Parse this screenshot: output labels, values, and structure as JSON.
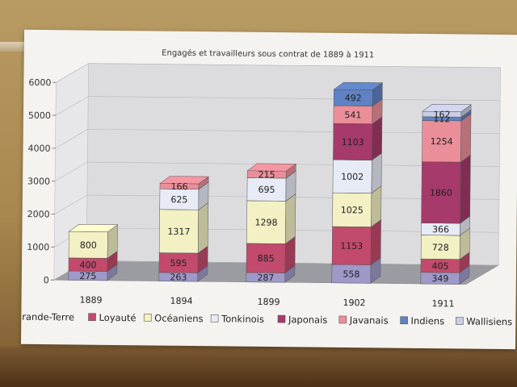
{
  "chart_data": {
    "type": "bar",
    "stacked": true,
    "three_d": true,
    "title": "Engagés et travailleurs sous contrat de 1889 à 1911",
    "xlabel": "",
    "ylabel": "",
    "ylim": [
      0,
      6000
    ],
    "yticks": [
      "0",
      "1000",
      "2000",
      "3000",
      "4000",
      "5000",
      "6000"
    ],
    "grid": true,
    "legend_position": "bottom",
    "categories": [
      "1889",
      "1894",
      "1899",
      "1902",
      "1911"
    ],
    "series": [
      {
        "name": "Grande-Terre",
        "color": "#9f99c9",
        "values": [
          275,
          263,
          287,
          558,
          349
        ]
      },
      {
        "name": "Loyauté",
        "color": "#c24a6c",
        "values": [
          400,
          595,
          885,
          1153,
          405
        ]
      },
      {
        "name": "Océaniens",
        "color": "#f3f0c4",
        "values": [
          800,
          1317,
          1298,
          1025,
          728
        ]
      },
      {
        "name": "Tonkinois",
        "color": "#e7ebf5",
        "values": [
          0,
          625,
          695,
          1002,
          366
        ]
      },
      {
        "name": "Japonais",
        "color": "#a63a6a",
        "values": [
          0,
          0,
          0,
          1103,
          1860
        ]
      },
      {
        "name": "Javanais",
        "color": "#ea8f9a",
        "values": [
          0,
          166,
          215,
          541,
          1254
        ]
      },
      {
        "name": "Indiens",
        "color": "#5e82c4",
        "values": [
          0,
          0,
          0,
          492,
          112
        ]
      },
      {
        "name": "Wallisiens",
        "color": "#c9cde6",
        "values": [
          0,
          0,
          0,
          0,
          162
        ]
      }
    ],
    "data_labels": [
      [
        "275",
        "263",
        "287",
        "558",
        "349"
      ],
      [
        "400",
        "595",
        "885",
        "1153",
        "405"
      ],
      [
        "800",
        "1317",
        "1298",
        "1025",
        "728"
      ],
      [
        "",
        "625",
        "695",
        "1002",
        "366"
      ],
      [
        "",
        "",
        "",
        "1103",
        "1860"
      ],
      [
        "",
        "166",
        "215",
        "541",
        "1254"
      ],
      [
        "",
        "",
        "",
        "492",
        "112"
      ],
      [
        "",
        "",
        "",
        "",
        "162"
      ]
    ]
  }
}
